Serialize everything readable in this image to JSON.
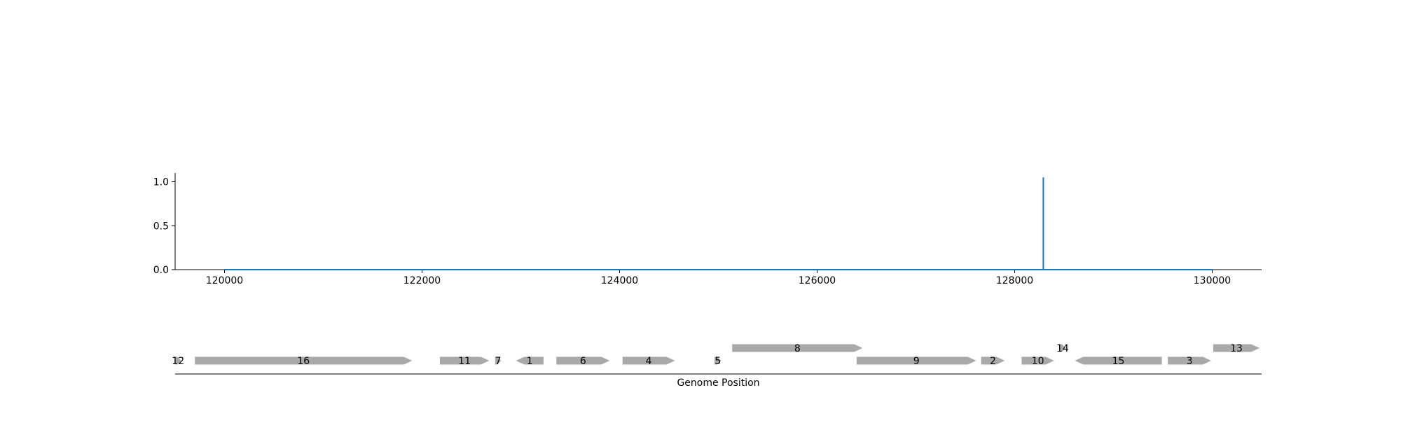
{
  "chart_data": [
    {
      "type": "line",
      "title": "",
      "xlabel": "",
      "ylabel": "",
      "xlim": [
        119500,
        130500
      ],
      "ylim": [
        0,
        1.1
      ],
      "x_ticks": [
        120000,
        122000,
        124000,
        126000,
        128000,
        130000
      ],
      "y_ticks": [
        0.0,
        0.5,
        1.0
      ],
      "grid": false,
      "line_color": "#1f77b4",
      "series": [
        {
          "x": [
            120000,
            128290,
            128290,
            128290,
            130000
          ],
          "y": [
            0,
            0,
            1.05,
            0,
            0
          ]
        }
      ]
    },
    {
      "type": "gene_map",
      "xlabel": "Genome Position",
      "xlim": [
        119500,
        130500
      ],
      "feature_color": "#a9a9a9",
      "features": [
        {
          "label": "12",
          "start": 119500,
          "end": 119560,
          "strand": 1,
          "level": 0
        },
        {
          "label": "16",
          "start": 119700,
          "end": 121900,
          "strand": 1,
          "level": 0
        },
        {
          "label": "11",
          "start": 122180,
          "end": 122680,
          "strand": 1,
          "level": 0
        },
        {
          "label": "7",
          "start": 122740,
          "end": 122800,
          "strand": 1,
          "level": 0
        },
        {
          "label": "1",
          "start": 122950,
          "end": 123230,
          "strand": -1,
          "level": 0
        },
        {
          "label": "6",
          "start": 123360,
          "end": 123900,
          "strand": 1,
          "level": 0
        },
        {
          "label": "4",
          "start": 124030,
          "end": 124560,
          "strand": 1,
          "level": 0
        },
        {
          "label": "5",
          "start": 124960,
          "end": 125030,
          "strand": 1,
          "level": 0
        },
        {
          "label": "8",
          "start": 125140,
          "end": 126460,
          "strand": 1,
          "level": 1
        },
        {
          "label": "9",
          "start": 126400,
          "end": 127610,
          "strand": 1,
          "level": 0
        },
        {
          "label": "2",
          "start": 127660,
          "end": 127900,
          "strand": 1,
          "level": 0
        },
        {
          "label": "10",
          "start": 128070,
          "end": 128400,
          "strand": 1,
          "level": 0
        },
        {
          "label": "14",
          "start": 128450,
          "end": 128520,
          "strand": 1,
          "level": 1
        },
        {
          "label": "15",
          "start": 128610,
          "end": 129490,
          "strand": -1,
          "level": 0
        },
        {
          "label": "3",
          "start": 129550,
          "end": 129990,
          "strand": 1,
          "level": 0
        },
        {
          "label": "13",
          "start": 130010,
          "end": 130480,
          "strand": 1,
          "level": 1
        }
      ]
    }
  ]
}
